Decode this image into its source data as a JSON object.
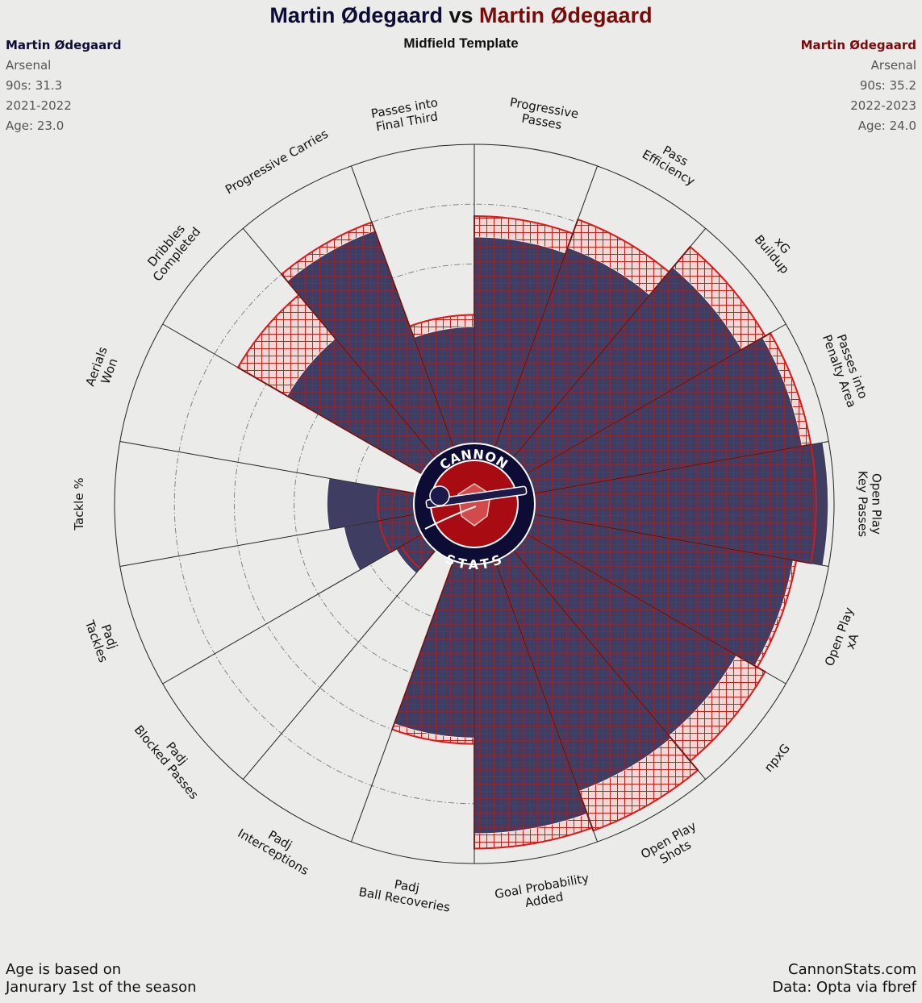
{
  "header": {
    "player1": "Martin Ødegaard",
    "vs": "vs",
    "player2": "Martin Ødegaard",
    "template": "Midfield Template"
  },
  "player1_info": {
    "name": "Martin Ødegaard",
    "club": "Arsenal",
    "nineties": "90s: 31.3",
    "season": "2021-2022",
    "age": "Age: 23.0"
  },
  "player2_info": {
    "name": "Martin Ødegaard",
    "club": "Arsenal",
    "nineties": "90s: 35.2",
    "season": "2022-2023",
    "age": "Age: 24.0"
  },
  "logo": {
    "top_text": "CANNON",
    "bottom_text": "STATS"
  },
  "footer": {
    "left_line1": "Age is based on",
    "left_line2": "Janurary 1st of the season",
    "right_line1": "CannonStats.com",
    "right_line2": "Data: Opta via fbref"
  },
  "colors": {
    "background": "#ebebe9",
    "player1": "#0d0c34",
    "player1_bar": "#3f3d62",
    "player2": "#7a0b0b",
    "player2_edge": "#dd1a1a",
    "player2_fill": "#f3d7d3"
  },
  "chart_data": {
    "type": "polar_bar",
    "title": "Martin Ødegaard vs Martin Ødegaard",
    "subtitle": "Midfield Template",
    "scale": "percentile",
    "rlim": [
      0,
      100
    ],
    "grid": true,
    "categories": [
      {
        "label": "Open Play\nKey Passes",
        "p1": 98,
        "p2": 94
      },
      {
        "label": "Passes into\nPenalty Area",
        "p1": 91,
        "p2": 94
      },
      {
        "label": "xG\nBuildup",
        "p1": 83,
        "p2": 92
      },
      {
        "label": "Pass\nEfficiency",
        "p1": 71,
        "p2": 81
      },
      {
        "label": "Progressive\nPasses",
        "p1": 69,
        "p2": 76
      },
      {
        "label": "Passes into\nFinal Third",
        "p1": 39,
        "p2": 43
      },
      {
        "label": "Progressive Carries",
        "p1": 77,
        "p2": 80
      },
      {
        "label": "Dribbles\nCompleted",
        "p1": 52,
        "p2": 71
      },
      {
        "label": "Aerials\nWon",
        "p1": 0,
        "p2": 0
      },
      {
        "label": "Tackle %",
        "p1": 29,
        "p2": 12
      },
      {
        "label": "Padj\nTackles",
        "p1": 24,
        "p2": 12
      },
      {
        "label": "Padj\nBlocked Passes",
        "p1": 10,
        "p2": 8
      },
      {
        "label": "Padj\nInterceptions",
        "p1": 0,
        "p2": 0
      },
      {
        "label": "Padj\nBall Recoveries",
        "p1": 58,
        "p2": 60
      },
      {
        "label": "Goal Probability\nAdded",
        "p1": 90,
        "p2": 95
      },
      {
        "label": "Open Play\nShots",
        "p1": 82,
        "p2": 96
      },
      {
        "label": "npxG",
        "p1": 81,
        "p2": 92
      },
      {
        "label": "Open Play\nxA",
        "p1": 88,
        "p2": 89
      }
    ],
    "series": [
      {
        "name": "Martin Ødegaard",
        "key": "p1",
        "color": "#3f3d62"
      },
      {
        "name": "Martin Ødegaard",
        "key": "p2",
        "color": "#dd1a1a"
      }
    ]
  }
}
